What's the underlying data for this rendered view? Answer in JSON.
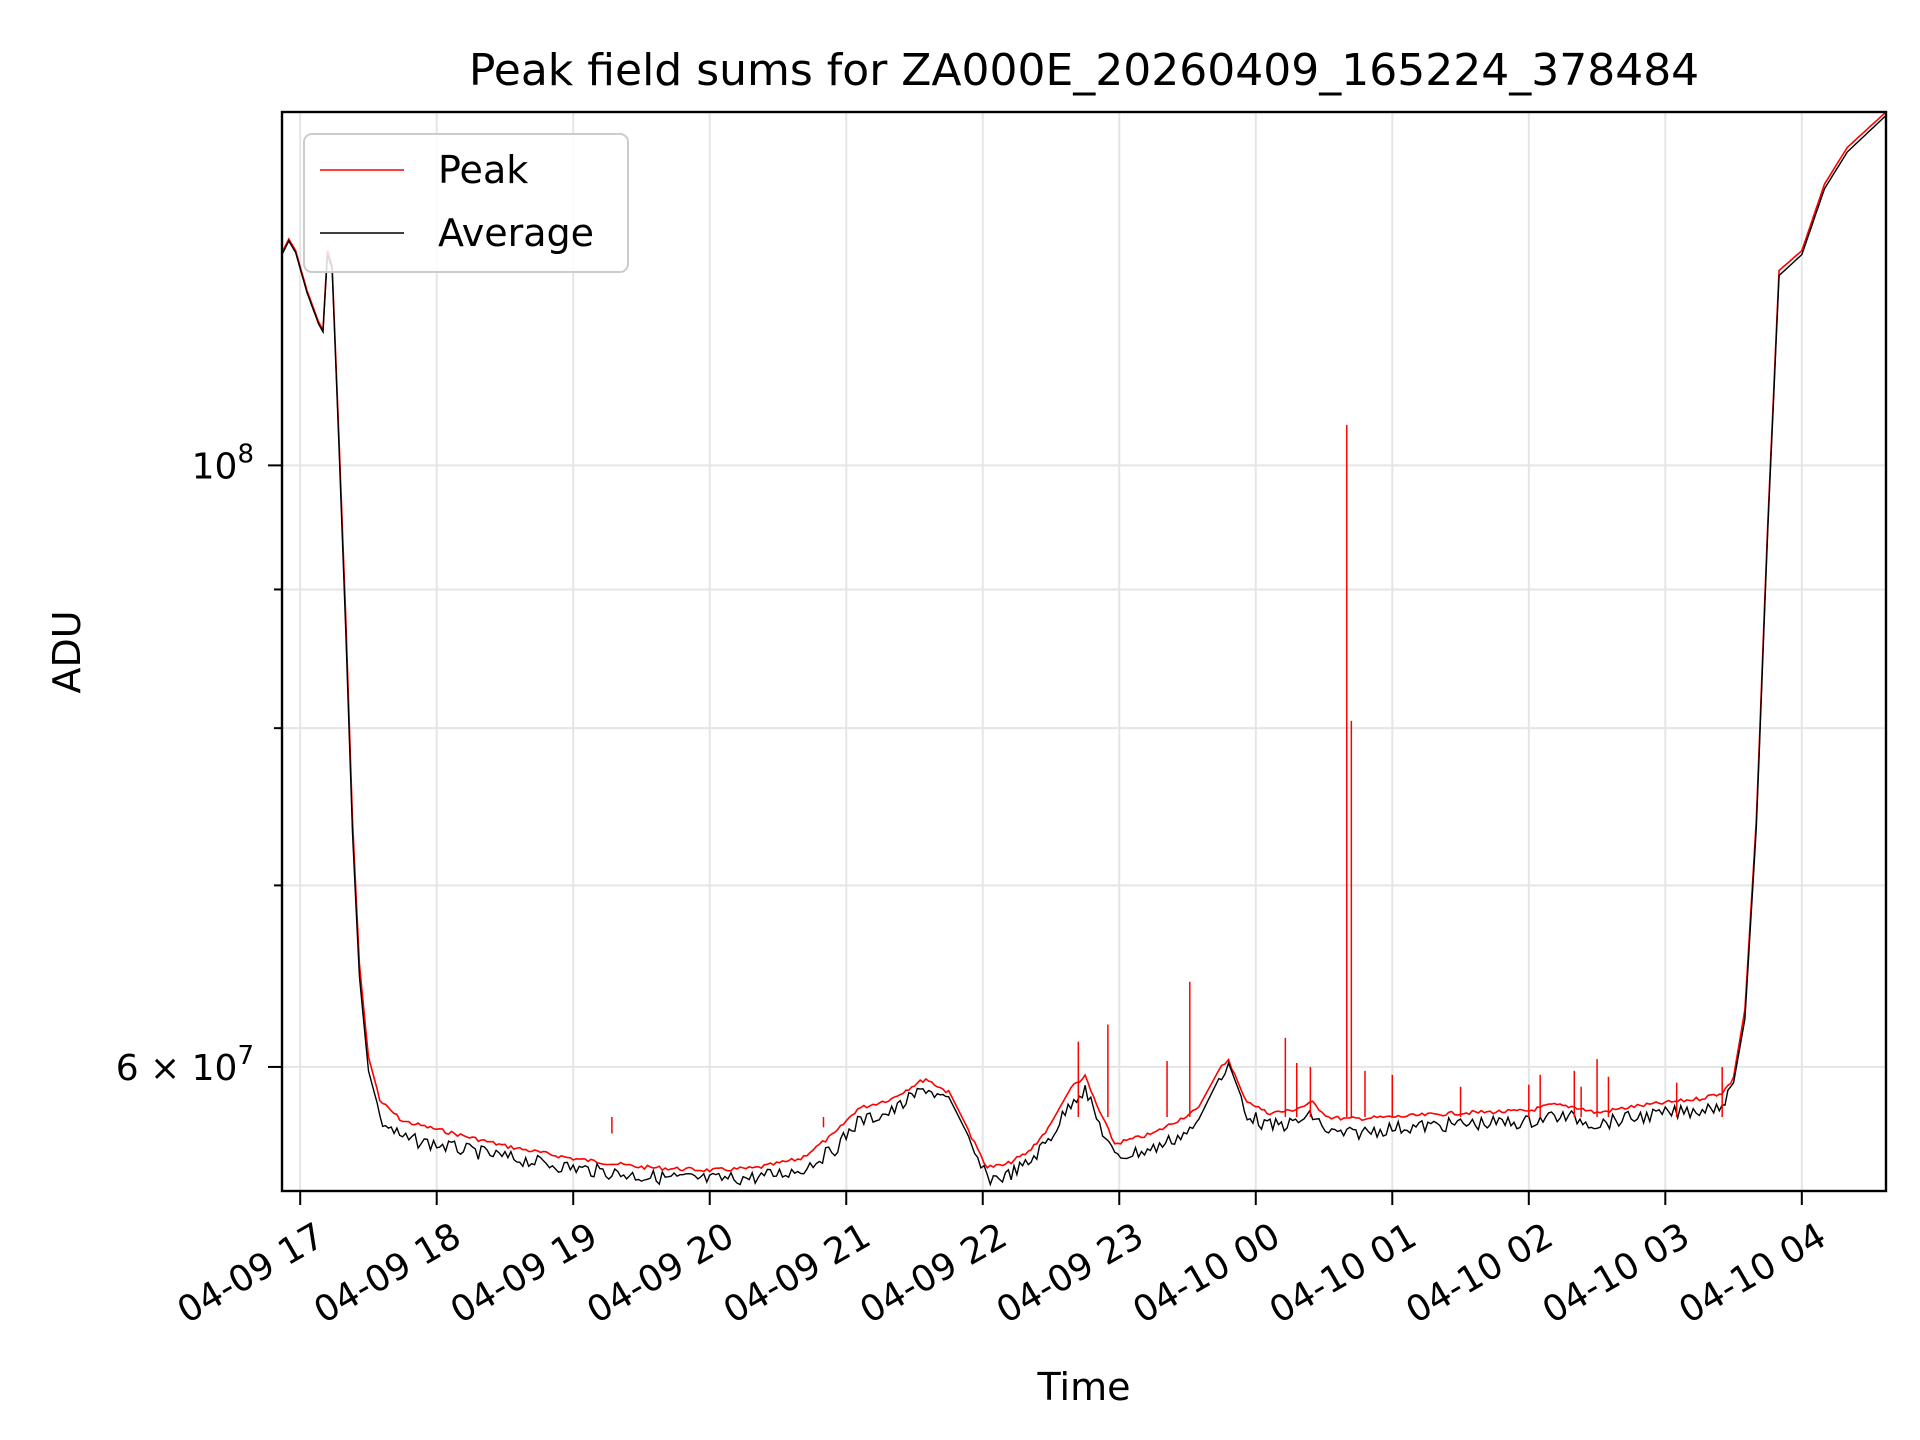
{
  "chart_data": {
    "type": "line",
    "title": "Peak field sums for ZA000E_20260409_165224_378484",
    "xlabel": "Time",
    "ylabel": "ADU",
    "y_scale": "log",
    "grid": true,
    "legend_position": "top-left",
    "xlim": [
      "2026-04-09 16:52",
      "2026-04-10 04:37"
    ],
    "ylim": [
      54000000,
      135000000
    ],
    "x_ticks": [
      {
        "t": "2026-04-09 17:00",
        "label": "04-09 17"
      },
      {
        "t": "2026-04-09 18:00",
        "label": "04-09 18"
      },
      {
        "t": "2026-04-09 19:00",
        "label": "04-09 19"
      },
      {
        "t": "2026-04-09 20:00",
        "label": "04-09 20"
      },
      {
        "t": "2026-04-09 21:00",
        "label": "04-09 21"
      },
      {
        "t": "2026-04-09 22:00",
        "label": "04-09 22"
      },
      {
        "t": "2026-04-09 23:00",
        "label": "04-09 23"
      },
      {
        "t": "2026-04-10 00:00",
        "label": "04-10 00"
      },
      {
        "t": "2026-04-10 01:00",
        "label": "04-10 01"
      },
      {
        "t": "2026-04-10 02:00",
        "label": "04-10 02"
      },
      {
        "t": "2026-04-10 03:00",
        "label": "04-10 03"
      },
      {
        "t": "2026-04-10 04:00",
        "label": "04-10 04"
      }
    ],
    "y_major_ticks": [
      {
        "value": 60000000,
        "label_base": "6 × 10",
        "label_exp": "7"
      },
      {
        "value": 100000000,
        "label_base": "10",
        "label_exp": "8"
      }
    ],
    "y_minor_ticks": [
      70000000,
      80000000,
      90000000
    ],
    "series": [
      {
        "name": "Peak",
        "color": "#ff0000",
        "points": [
          [
            "2026-04-09 16:52",
            119800000
          ],
          [
            "2026-04-09 16:55",
            121200000
          ],
          [
            "2026-04-09 16:58",
            120000000
          ],
          [
            "2026-04-09 17:03",
            116000000
          ],
          [
            "2026-04-09 17:08",
            113000000
          ],
          [
            "2026-04-09 17:10",
            112200000
          ],
          [
            "2026-04-09 17:12",
            120000000
          ],
          [
            "2026-04-09 17:14",
            118500000
          ],
          [
            "2026-04-09 17:17",
            102500000
          ],
          [
            "2026-04-09 17:20",
            88000000
          ],
          [
            "2026-04-09 17:23",
            74000000
          ],
          [
            "2026-04-09 17:26",
            65500000
          ],
          [
            "2026-04-09 17:30",
            60500000
          ],
          [
            "2026-04-09 17:35",
            58400000
          ],
          [
            "2026-04-09 17:45",
            57400000
          ],
          [
            "2026-04-09 18:00",
            57000000
          ],
          [
            "2026-04-09 18:30",
            56200000
          ],
          [
            "2026-04-09 19:00",
            55600000
          ],
          [
            "2026-04-09 19:30",
            55200000
          ],
          [
            "2026-04-09 20:00",
            55050000
          ],
          [
            "2026-04-09 20:20",
            55150000
          ],
          [
            "2026-04-09 20:40",
            55600000
          ],
          [
            "2026-04-09 20:55",
            56800000
          ],
          [
            "2026-04-09 21:05",
            58000000
          ],
          [
            "2026-04-09 21:20",
            58500000
          ],
          [
            "2026-04-09 21:30",
            59200000
          ],
          [
            "2026-04-09 21:35",
            59500000
          ],
          [
            "2026-04-09 21:45",
            58800000
          ],
          [
            "2026-04-09 21:55",
            56600000
          ],
          [
            "2026-04-09 22:02",
            55200000
          ],
          [
            "2026-04-09 22:10",
            55300000
          ],
          [
            "2026-04-09 22:20",
            55900000
          ],
          [
            "2026-04-09 22:30",
            57200000
          ],
          [
            "2026-04-09 22:40",
            59200000
          ],
          [
            "2026-04-09 22:45",
            59600000
          ],
          [
            "2026-04-09 22:50",
            58200000
          ],
          [
            "2026-04-09 22:58",
            56300000
          ],
          [
            "2026-04-09 23:15",
            56800000
          ],
          [
            "2026-04-09 23:35",
            58000000
          ],
          [
            "2026-04-09 23:45",
            60100000
          ],
          [
            "2026-04-09 23:48",
            60500000
          ],
          [
            "2026-04-09 23:55",
            58500000
          ],
          [
            "2026-04-10 00:05",
            57800000
          ],
          [
            "2026-04-10 00:15",
            57900000
          ],
          [
            "2026-04-10 00:25",
            58300000
          ],
          [
            "2026-04-10 00:32",
            57600000
          ],
          [
            "2026-04-10 00:40",
            57500000
          ],
          [
            "2026-04-10 01:00",
            57600000
          ],
          [
            "2026-04-10 01:30",
            57800000
          ],
          [
            "2026-04-10 02:00",
            57900000
          ],
          [
            "2026-04-10 02:10",
            58200000
          ],
          [
            "2026-04-10 02:20",
            58100000
          ],
          [
            "2026-04-10 02:30",
            57800000
          ],
          [
            "2026-04-10 02:45",
            58100000
          ],
          [
            "2026-04-10 03:00",
            58300000
          ],
          [
            "2026-04-10 03:15",
            58500000
          ],
          [
            "2026-04-10 03:25",
            58800000
          ],
          [
            "2026-04-10 03:30",
            59500000
          ],
          [
            "2026-04-10 03:35",
            63000000
          ],
          [
            "2026-04-10 03:40",
            74000000
          ],
          [
            "2026-04-10 03:45",
            95000000
          ],
          [
            "2026-04-10 03:50",
            118000000
          ],
          [
            "2026-04-10 04:00",
            120000000
          ],
          [
            "2026-04-10 04:10",
            127000000
          ],
          [
            "2026-04-10 04:20",
            131000000
          ],
          [
            "2026-04-10 04:37",
            135000000
          ]
        ],
        "spikes": [
          [
            "2026-04-09 19:17",
            56700000
          ],
          [
            "2026-04-09 20:50",
            57000000
          ],
          [
            "2026-04-09 22:42",
            61300000
          ],
          [
            "2026-04-09 22:55",
            62200000
          ],
          [
            "2026-04-09 23:21",
            60300000
          ],
          [
            "2026-04-09 23:31",
            64500000
          ],
          [
            "2026-04-10 00:13",
            61500000
          ],
          [
            "2026-04-10 00:18",
            60200000
          ],
          [
            "2026-04-10 00:24",
            60000000
          ],
          [
            "2026-04-10 00:40",
            103500000
          ],
          [
            "2026-04-10 00:42",
            80500000
          ],
          [
            "2026-04-10 00:48",
            59800000
          ],
          [
            "2026-04-10 01:00",
            59600000
          ],
          [
            "2026-04-10 01:30",
            59000000
          ],
          [
            "2026-04-10 02:00",
            59100000
          ],
          [
            "2026-04-10 02:05",
            59600000
          ],
          [
            "2026-04-10 02:20",
            59800000
          ],
          [
            "2026-04-10 02:23",
            59000000
          ],
          [
            "2026-04-10 02:30",
            60400000
          ],
          [
            "2026-04-10 02:35",
            59500000
          ],
          [
            "2026-04-10 03:05",
            59200000
          ],
          [
            "2026-04-10 03:25",
            60000000
          ]
        ]
      },
      {
        "name": "Average",
        "color": "#000000",
        "points": [
          [
            "2026-04-09 16:52",
            119600000
          ],
          [
            "2026-04-09 16:55",
            121000000
          ],
          [
            "2026-04-09 16:58",
            119800000
          ],
          [
            "2026-04-09 17:03",
            115800000
          ],
          [
            "2026-04-09 17:08",
            112800000
          ],
          [
            "2026-04-09 17:10",
            112000000
          ],
          [
            "2026-04-09 17:12",
            119600000
          ],
          [
            "2026-04-09 17:14",
            118200000
          ],
          [
            "2026-04-09 17:17",
            101800000
          ],
          [
            "2026-04-09 17:20",
            87000000
          ],
          [
            "2026-04-09 17:23",
            73200000
          ],
          [
            "2026-04-09 17:26",
            64800000
          ],
          [
            "2026-04-09 17:30",
            59800000
          ],
          [
            "2026-04-09 17:35",
            57700000
          ],
          [
            "2026-04-09 17:45",
            56800000
          ],
          [
            "2026-04-09 18:00",
            56500000
          ],
          [
            "2026-04-09 18:30",
            55900000
          ],
          [
            "2026-04-09 19:00",
            55400000
          ],
          [
            "2026-04-09 19:30",
            55000000
          ],
          [
            "2026-04-09 20:00",
            54850000
          ],
          [
            "2026-04-09 20:20",
            54950000
          ],
          [
            "2026-04-09 20:40",
            55300000
          ],
          [
            "2026-04-09 20:55",
            56300000
          ],
          [
            "2026-04-09 21:05",
            57600000
          ],
          [
            "2026-04-09 21:20",
            58100000
          ],
          [
            "2026-04-09 21:30",
            58900000
          ],
          [
            "2026-04-09 21:35",
            59300000
          ],
          [
            "2026-04-09 21:45",
            58500000
          ],
          [
            "2026-04-09 21:55",
            56300000
          ],
          [
            "2026-04-09 22:02",
            54900000
          ],
          [
            "2026-04-09 22:10",
            55000000
          ],
          [
            "2026-04-09 22:20",
            55600000
          ],
          [
            "2026-04-09 22:30",
            56900000
          ],
          [
            "2026-04-09 22:40",
            58800000
          ],
          [
            "2026-04-09 22:45",
            59200000
          ],
          [
            "2026-04-09 22:50",
            57800000
          ],
          [
            "2026-04-09 22:58",
            55900000
          ],
          [
            "2026-04-09 23:15",
            56300000
          ],
          [
            "2026-04-09 23:35",
            57400000
          ],
          [
            "2026-04-09 23:45",
            59700000
          ],
          [
            "2026-04-09 23:48",
            60200000
          ],
          [
            "2026-04-09 23:55",
            58100000
          ],
          [
            "2026-04-10 00:05",
            57400000
          ],
          [
            "2026-04-10 00:15",
            57500000
          ],
          [
            "2026-04-10 00:25",
            57900000
          ],
          [
            "2026-04-10 00:32",
            57100000
          ],
          [
            "2026-04-10 00:40",
            57000000
          ],
          [
            "2026-04-10 01:00",
            57300000
          ],
          [
            "2026-04-10 01:30",
            57500000
          ],
          [
            "2026-04-10 02:00",
            57600000
          ],
          [
            "2026-04-10 02:10",
            57900000
          ],
          [
            "2026-04-10 02:20",
            57800000
          ],
          [
            "2026-04-10 02:30",
            57500000
          ],
          [
            "2026-04-10 02:45",
            57800000
          ],
          [
            "2026-04-10 03:00",
            58000000
          ],
          [
            "2026-04-10 03:15",
            58200000
          ],
          [
            "2026-04-10 03:25",
            58500000
          ],
          [
            "2026-04-10 03:30",
            59200000
          ],
          [
            "2026-04-10 03:35",
            62500000
          ],
          [
            "2026-04-10 03:40",
            73500000
          ],
          [
            "2026-04-10 03:45",
            94500000
          ],
          [
            "2026-04-10 03:50",
            117500000
          ],
          [
            "2026-04-10 04:00",
            119600000
          ],
          [
            "2026-04-10 04:10",
            126500000
          ],
          [
            "2026-04-10 04:20",
            130500000
          ],
          [
            "2026-04-10 04:37",
            134600000
          ]
        ]
      }
    ]
  }
}
